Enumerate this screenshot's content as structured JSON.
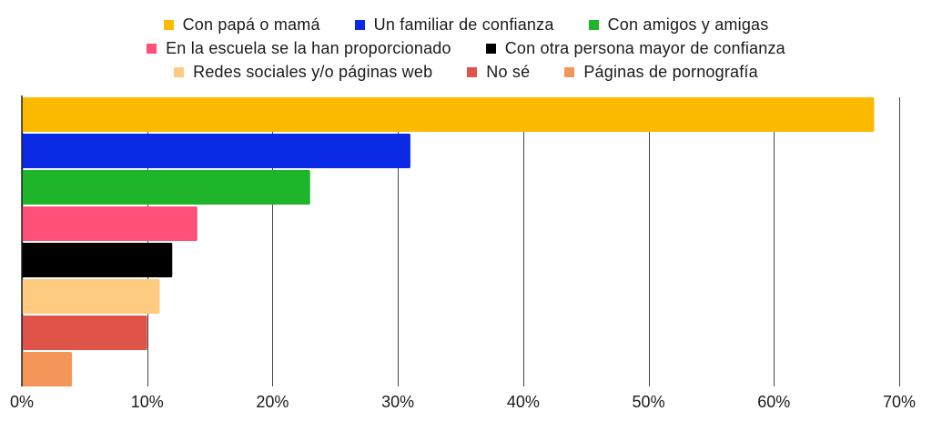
{
  "chart_data": {
    "type": "bar",
    "orientation": "horizontal",
    "title": "",
    "xlabel": "",
    "ylabel": "",
    "xlim": [
      0,
      70
    ],
    "grid": true,
    "legend_position": "top",
    "tick_values": [
      0,
      10,
      20,
      30,
      40,
      50,
      60,
      70
    ],
    "tick_labels": [
      "0%",
      "10%",
      "20%",
      "30%",
      "40%",
      "50%",
      "60%",
      "70%"
    ],
    "categories": [
      "Con papá o mamá",
      "Un familiar de confianza",
      "Con amigos y amigas",
      "En la escuela se la han proporcionado",
      "Con otra persona mayor de confianza",
      "Redes sociales y/o páginas web",
      "No sé",
      "Páginas de pornografía"
    ],
    "values": [
      68,
      31,
      23,
      14,
      12,
      11,
      10,
      4
    ],
    "colors": [
      "#fcbb00",
      "#0a2ae6",
      "#1fb52a",
      "#ff5079",
      "#000000",
      "#ffcb80",
      "#df5349",
      "#f4955a"
    ]
  },
  "legend": {
    "rows": [
      [
        0,
        1,
        2
      ],
      [
        3,
        4
      ],
      [
        5,
        6,
        7
      ]
    ]
  }
}
